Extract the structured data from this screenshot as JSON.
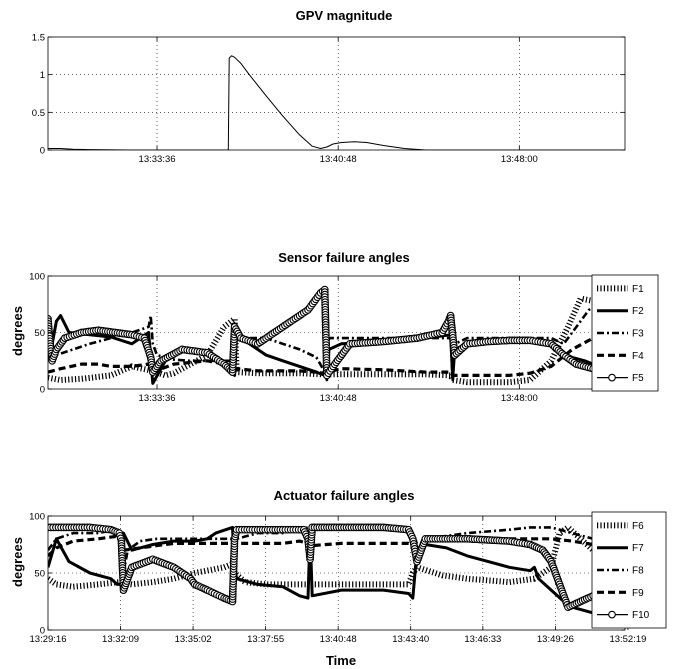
{
  "chart_data": [
    {
      "type": "line",
      "title": "GPV magnitude",
      "xlabel": "",
      "ylabel": "",
      "xlim": [
        0,
        1376
      ],
      "ylim": [
        0,
        1.5
      ],
      "yticks": [
        0,
        0.5,
        1,
        1.5
      ],
      "yticklabels": [
        "0",
        "0.5",
        "1",
        "1.5"
      ],
      "xticks": [
        260,
        692,
        1124
      ],
      "xticklabels": [
        "13:33:36",
        "13:40:48",
        "13:48:00"
      ],
      "grid": true,
      "series": [
        {
          "color": "#000000",
          "x": [
            0,
            30,
            60,
            100,
            200,
            300,
            400,
            430,
            432,
            438,
            445,
            460,
            480,
            520,
            560,
            600,
            630,
            650,
            665,
            680,
            700,
            730,
            760,
            800,
            850,
            900,
            1000,
            1100,
            1200,
            1376
          ],
          "values": [
            0.02,
            0.02,
            0.01,
            0.005,
            0.0,
            0.0,
            0.0,
            0.0,
            1.22,
            1.25,
            1.23,
            1.15,
            1.0,
            0.72,
            0.45,
            0.2,
            0.05,
            0.02,
            0.04,
            0.08,
            0.1,
            0.11,
            0.1,
            0.06,
            0.02,
            0.0,
            0.0,
            0.0,
            0.0,
            0.0
          ]
        }
      ]
    },
    {
      "type": "line",
      "title": "Sensor failure angles",
      "xlabel": "",
      "ylabel": "degrees",
      "xlim": [
        0,
        1376
      ],
      "ylim": [
        0,
        100
      ],
      "yticks": [
        0,
        50,
        100
      ],
      "yticklabels": [
        "0",
        "50",
        "100"
      ],
      "xticks": [
        260,
        692,
        1124
      ],
      "xticklabels": [
        "13:33:36",
        "13:40:48",
        "13:48:00"
      ],
      "grid": true,
      "legend": "right",
      "series": [
        {
          "name": "F1",
          "style": "dotted",
          "x": [
            0,
            30,
            80,
            150,
            200,
            250,
            280,
            300,
            380,
            420,
            445,
            450,
            500,
            600,
            650,
            700,
            800,
            900,
            960,
            965,
            1000,
            1100,
            1150,
            1200,
            1240,
            1270,
            1300,
            1330,
            1376
          ],
          "values": [
            10,
            8,
            9,
            12,
            20,
            16,
            12,
            14,
            30,
            55,
            62,
            15,
            14,
            14,
            13,
            13,
            13,
            13,
            12,
            8,
            6,
            6,
            8,
            25,
            55,
            80,
            78,
            75,
            70
          ]
        },
        {
          "name": "F2",
          "style": "solid-bold",
          "x": [
            0,
            10,
            20,
            30,
            50,
            100,
            150,
            200,
            240,
            250,
            280,
            320,
            380,
            420,
            445,
            450,
            470,
            480,
            500,
            520,
            560,
            600,
            640,
            660,
            665,
            670,
            700,
            800,
            900,
            960,
            965,
            970,
            1000,
            1050,
            1100,
            1150,
            1180,
            1200,
            1230,
            1250,
            1280,
            1300,
            1330,
            1376
          ],
          "values": [
            45,
            40,
            60,
            65,
            50,
            48,
            46,
            40,
            50,
            5,
            25,
            35,
            30,
            20,
            12,
            50,
            45,
            40,
            35,
            30,
            25,
            20,
            15,
            12,
            10,
            35,
            40,
            42,
            45,
            48,
            10,
            35,
            40,
            42,
            43,
            43,
            42,
            38,
            32,
            28,
            25,
            22,
            20,
            22
          ]
        },
        {
          "name": "F3",
          "style": "dashdot",
          "x": [
            0,
            20,
            60,
            100,
            150,
            200,
            240,
            245,
            250,
            260,
            280,
            300,
            340,
            380,
            420,
            440,
            445,
            450,
            480,
            520,
            560,
            600,
            640,
            660,
            665,
            670,
            700,
            800,
            900,
            960,
            965,
            970,
            1000,
            1100,
            1150,
            1200,
            1230,
            1260,
            1290,
            1330,
            1376
          ],
          "values": [
            35,
            30,
            35,
            40,
            45,
            50,
            55,
            65,
            40,
            30,
            28,
            26,
            25,
            25,
            25,
            25,
            58,
            45,
            45,
            45,
            40,
            35,
            28,
            15,
            8,
            45,
            45,
            45,
            45,
            45,
            8,
            40,
            45,
            45,
            45,
            45,
            40,
            55,
            70,
            80,
            78
          ]
        },
        {
          "name": "F4",
          "style": "dashed-bold",
          "x": [
            0,
            30,
            80,
            120,
            150,
            200,
            240,
            250,
            300,
            380,
            420,
            445,
            450,
            500,
            600,
            640,
            660,
            665,
            700,
            800,
            900,
            960,
            965,
            1000,
            1100,
            1150,
            1200,
            1250,
            1300,
            1376
          ],
          "values": [
            15,
            18,
            22,
            22,
            20,
            20,
            22,
            15,
            22,
            25,
            22,
            15,
            18,
            16,
            16,
            15,
            14,
            15,
            18,
            17,
            15,
            15,
            12,
            12,
            12,
            14,
            20,
            35,
            45,
            50
          ]
        },
        {
          "name": "F5",
          "style": "solid-circle",
          "x": [
            0,
            5,
            10,
            20,
            40,
            80,
            120,
            160,
            200,
            230,
            245,
            250,
            270,
            320,
            380,
            420,
            440,
            445,
            460,
            500,
            560,
            620,
            650,
            660,
            665,
            680,
            720,
            800,
            880,
            940,
            955,
            960,
            970,
            1000,
            1050,
            1100,
            1150,
            1200,
            1230,
            1260,
            1300,
            1376
          ],
          "values": [
            62,
            40,
            25,
            35,
            45,
            50,
            52,
            50,
            48,
            45,
            28,
            15,
            25,
            35,
            32,
            22,
            15,
            55,
            45,
            40,
            55,
            70,
            85,
            88,
            12,
            20,
            40,
            42,
            45,
            50,
            60,
            65,
            30,
            40,
            42,
            43,
            43,
            40,
            30,
            22,
            18,
            20
          ]
        }
      ]
    },
    {
      "type": "line",
      "title": "Actuator failure angles",
      "xlabel": "Time",
      "ylabel": "degrees",
      "xlim": [
        0,
        1376
      ],
      "ylim": [
        0,
        100
      ],
      "yticks": [
        0,
        50,
        100
      ],
      "yticklabels": [
        "0",
        "50",
        "100"
      ],
      "xticks": [
        0,
        173,
        346,
        519,
        692,
        865,
        1037,
        1210,
        1383
      ],
      "xticklabels": [
        "13:29:16",
        "13:32:09",
        "13:35:02",
        "13:37:55",
        "13:40:48",
        "13:43:40",
        "13:46:33",
        "13:49:26",
        "13:52:19"
      ],
      "grid": true,
      "legend": "right",
      "series": [
        {
          "name": "F6",
          "style": "dotted",
          "x": [
            0,
            20,
            60,
            120,
            170,
            200,
            250,
            300,
            350,
            420,
            440,
            445,
            470,
            520,
            600,
            700,
            800,
            860,
            870,
            880,
            940,
            1000,
            1100,
            1160,
            1200,
            1220,
            1240,
            1270,
            1300,
            1376
          ],
          "values": [
            45,
            40,
            38,
            40,
            42,
            40,
            42,
            45,
            50,
            55,
            58,
            50,
            42,
            40,
            40,
            40,
            40,
            40,
            50,
            55,
            48,
            45,
            42,
            45,
            55,
            85,
            90,
            80,
            70,
            65
          ]
        },
        {
          "name": "F7",
          "style": "solid-bold",
          "x": [
            0,
            20,
            50,
            100,
            150,
            165,
            175,
            180,
            200,
            250,
            300,
            350,
            380,
            400,
            440,
            445,
            450,
            500,
            560,
            600,
            620,
            625,
            630,
            700,
            800,
            860,
            870,
            880,
            900,
            950,
            1000,
            1050,
            1100,
            1150,
            1160,
            1170,
            1200,
            1230,
            1250,
            1300,
            1376
          ],
          "values": [
            55,
            80,
            60,
            50,
            45,
            40,
            40,
            85,
            70,
            75,
            78,
            78,
            80,
            85,
            90,
            55,
            45,
            40,
            38,
            30,
            28,
            85,
            30,
            35,
            35,
            32,
            28,
            70,
            75,
            72,
            65,
            60,
            55,
            52,
            55,
            45,
            35,
            25,
            20,
            15,
            15
          ]
        },
        {
          "name": "F8",
          "style": "dashdot",
          "x": [
            0,
            20,
            60,
            120,
            160,
            175,
            180,
            190,
            220,
            260,
            300,
            350,
            400,
            440,
            445,
            450,
            500,
            560,
            600,
            620,
            625,
            630,
            700,
            800,
            860,
            870,
            880,
            900,
            1000,
            1100,
            1150,
            1200,
            1250,
            1300,
            1376
          ],
          "values": [
            70,
            80,
            85,
            85,
            88,
            85,
            50,
            70,
            78,
            80,
            80,
            80,
            80,
            80,
            85,
            80,
            85,
            85,
            88,
            90,
            85,
            88,
            88,
            88,
            88,
            85,
            70,
            80,
            85,
            88,
            90,
            90,
            85,
            80,
            90
          ]
        },
        {
          "name": "F9",
          "style": "dashed-bold",
          "x": [
            0,
            20,
            60,
            120,
            160,
            175,
            180,
            220,
            260,
            300,
            350,
            400,
            440,
            445,
            450,
            500,
            560,
            600,
            620,
            625,
            630,
            700,
            800,
            860,
            870,
            880,
            900,
            1000,
            1100,
            1150,
            1200,
            1250,
            1300,
            1376
          ],
          "values": [
            65,
            72,
            78,
            80,
            82,
            78,
            70,
            72,
            74,
            76,
            76,
            76,
            76,
            74,
            76,
            76,
            76,
            78,
            76,
            72,
            74,
            76,
            76,
            76,
            74,
            78,
            78,
            80,
            80,
            80,
            80,
            78,
            75,
            78
          ]
        },
        {
          "name": "F10",
          "style": "solid-circle",
          "x": [
            0,
            50,
            100,
            150,
            170,
            175,
            180,
            200,
            250,
            300,
            340,
            350,
            380,
            420,
            440,
            445,
            450,
            500,
            560,
            610,
            620,
            625,
            630,
            700,
            800,
            860,
            870,
            880,
            900,
            1000,
            1100,
            1150,
            1180,
            1200,
            1220,
            1240,
            1270,
            1300,
            1376
          ],
          "values": [
            90,
            90,
            90,
            88,
            85,
            78,
            35,
            55,
            62,
            55,
            45,
            40,
            35,
            28,
            25,
            80,
            88,
            88,
            88,
            88,
            80,
            62,
            90,
            90,
            90,
            88,
            80,
            60,
            80,
            80,
            78,
            75,
            70,
            60,
            40,
            20,
            25,
            30,
            35
          ]
        }
      ]
    }
  ]
}
